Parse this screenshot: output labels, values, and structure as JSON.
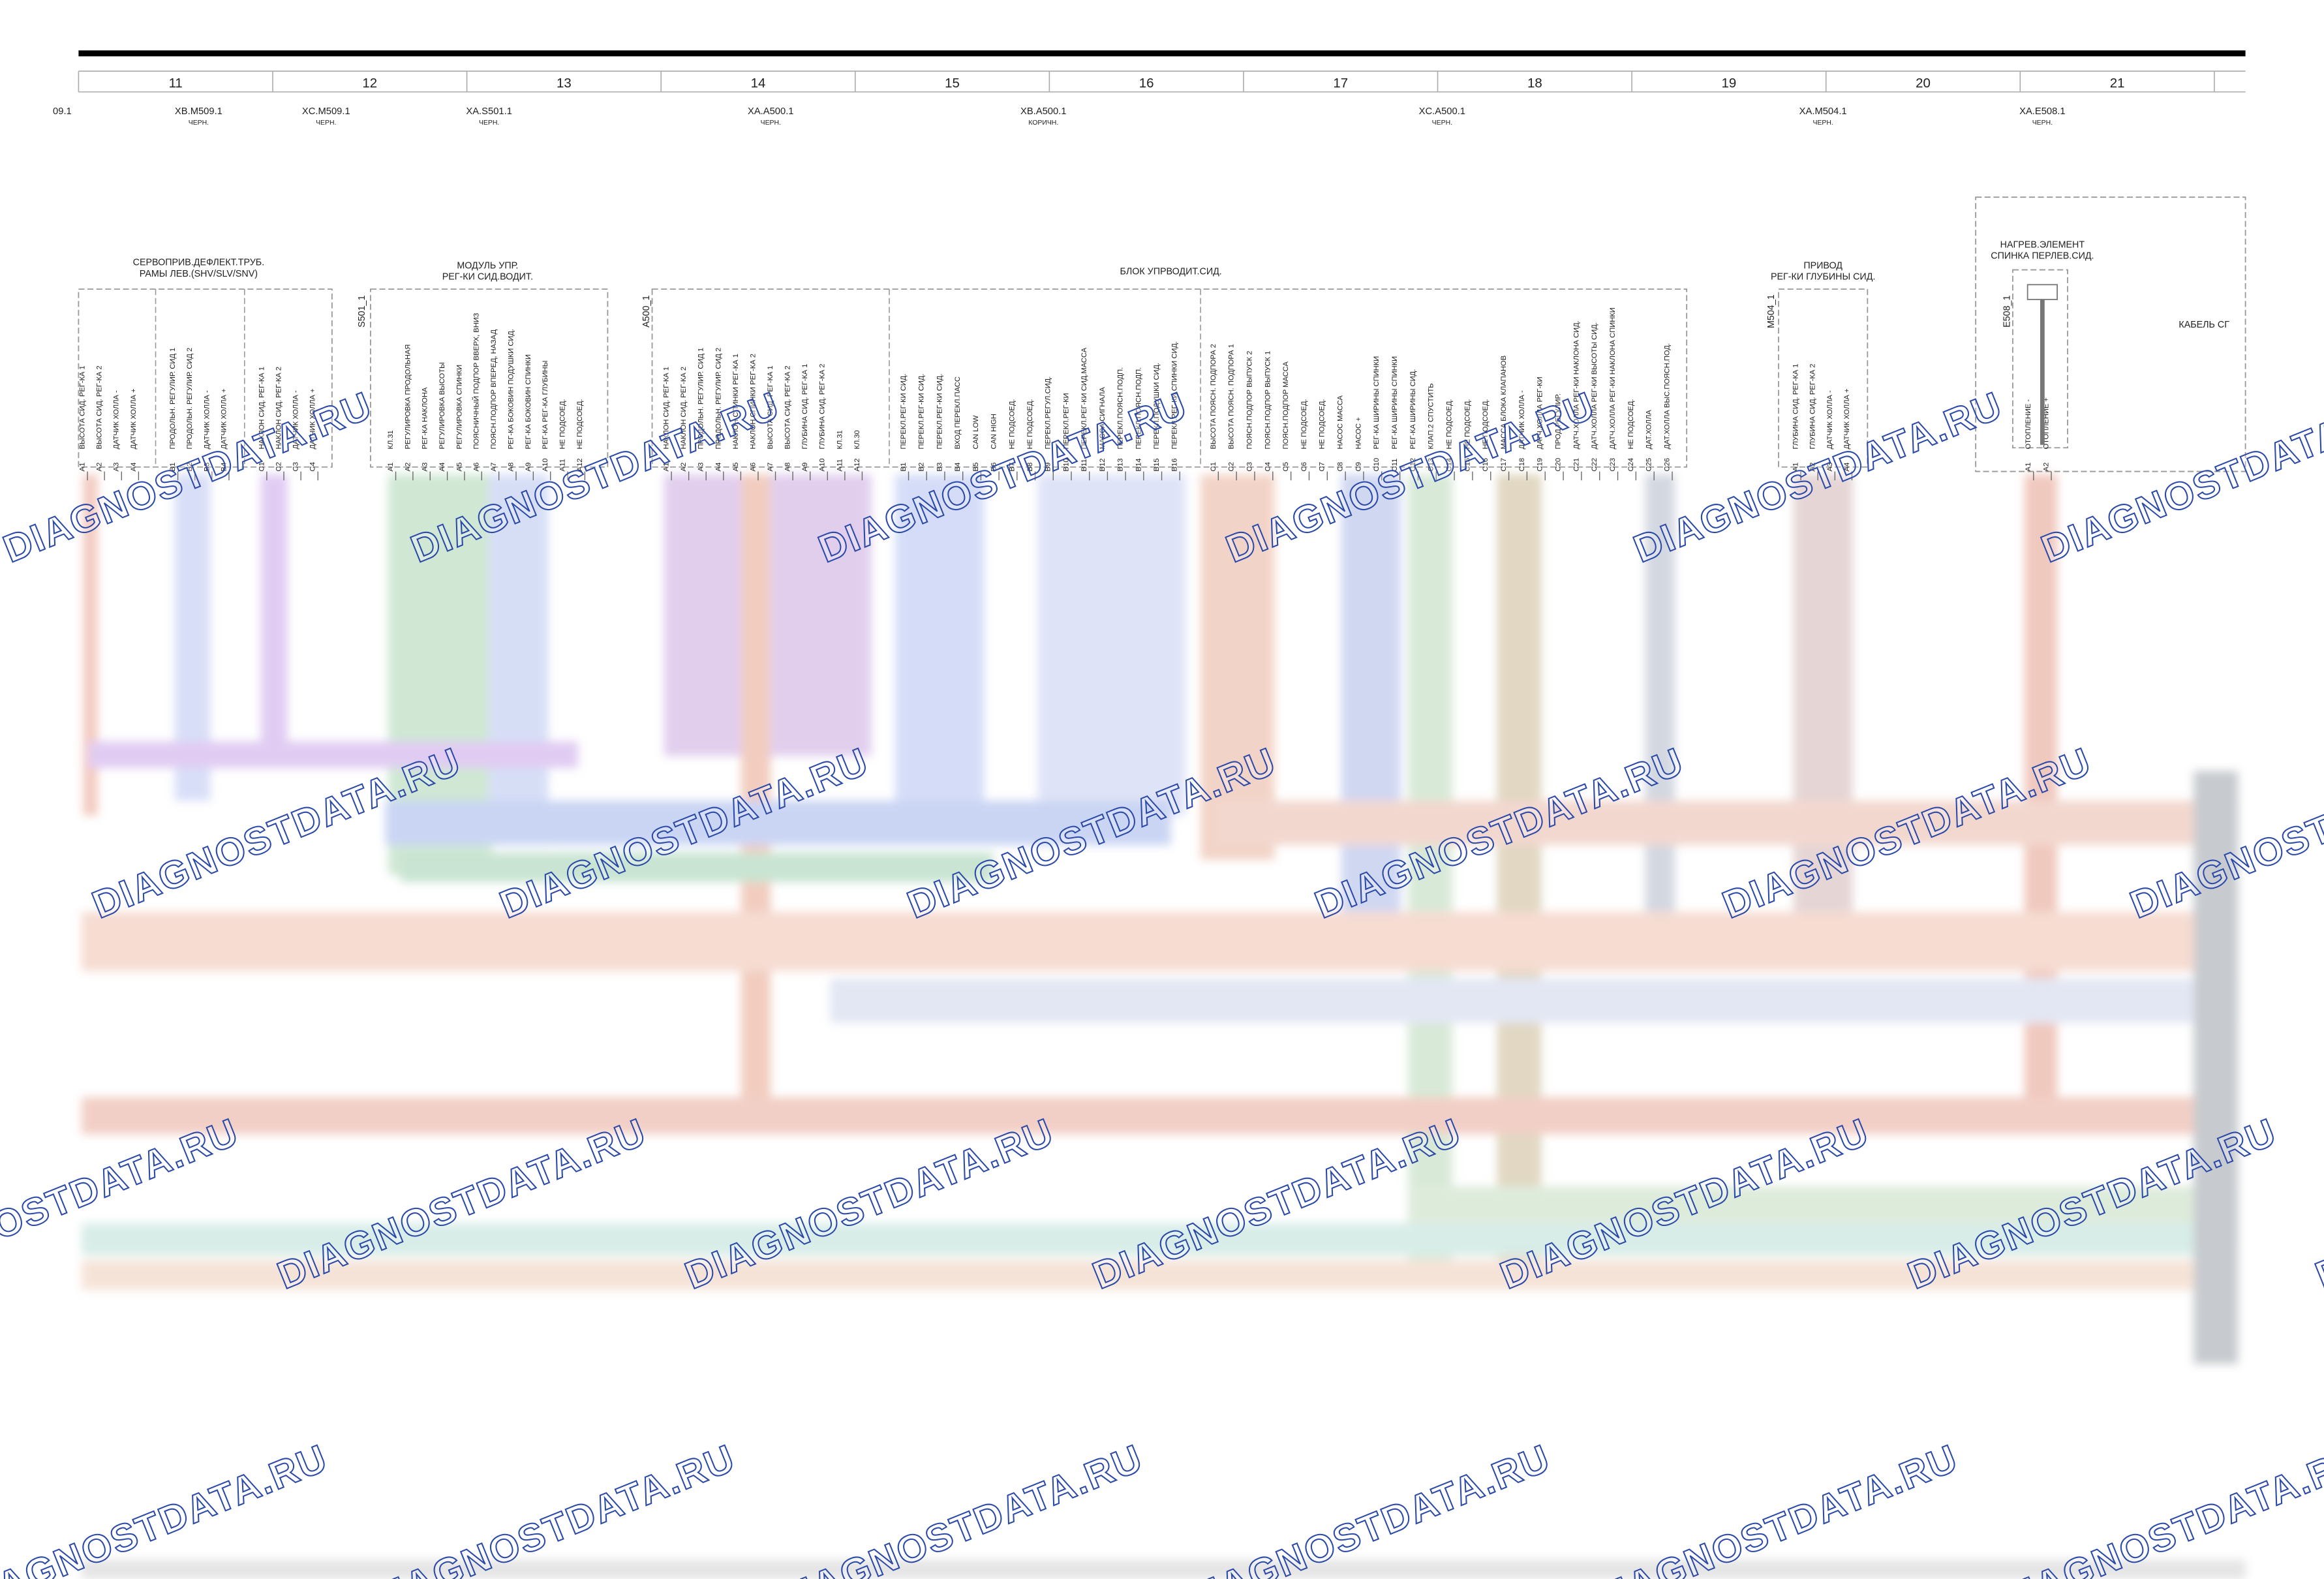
{
  "columns": [
    "11",
    "12",
    "13",
    "14",
    "15",
    "16",
    "17",
    "18",
    "19",
    "20",
    "21"
  ],
  "connectors": [
    {
      "name": "09.1"
    },
    {
      "name": "XB.M509.1",
      "color": "ЧЕРН."
    },
    {
      "name": "XC.M509.1",
      "color": "ЧЕРН."
    },
    {
      "name": "XA.S501.1",
      "color": "ЧЕРН."
    },
    {
      "name": "XA.A500.1",
      "color": "ЧЕРН."
    },
    {
      "name": "XB.A500.1",
      "color": "КОРИЧН."
    },
    {
      "name": "XC.A500.1",
      "color": "ЧЕРН."
    },
    {
      "name": "XA.M504.1",
      "color": "ЧЕРН."
    },
    {
      "name": "XA.E508.1",
      "color": "ЧЕРН."
    }
  ],
  "blocks": [
    {
      "title": [
        "СЕРВОПРИВ.ДЕФЛЕКТ.ТРУБ.",
        "РАМЫ ЛЕВ.(SHV/SLV/SNV)"
      ],
      "pins": [
        {
          "code": "A1",
          "label": "ВЫСОТА СИД. РЕГ-КА 1"
        },
        {
          "code": "A2",
          "label": "ВЫСОТА СИД. РЕГ-КА 2"
        },
        {
          "code": "A3",
          "label": "ДАТЧИК ХОЛЛА -"
        },
        {
          "code": "A4",
          "label": "ДАТЧИК ХОЛЛА +"
        },
        {
          "code": "B1",
          "label": "ПРОДОЛЬН. РЕГУЛИР. СИД 1"
        },
        {
          "code": "B2",
          "label": "ПРОДОЛЬН. РЕГУЛИР. СИД 2"
        },
        {
          "code": "B3",
          "label": "ДАТЧИК ХОЛЛА -"
        },
        {
          "code": "B4",
          "label": "ДАТЧИК ХОЛЛА +"
        },
        {
          "code": "C1",
          "label": "НАКЛОН СИД. РЕГ-КА 1"
        },
        {
          "code": "C2",
          "label": "НАКЛОН СИД. РЕГ-КА 2"
        },
        {
          "code": "C3",
          "label": "ДАТЧИК ХОЛЛА -"
        },
        {
          "code": "C4",
          "label": "ДАТЧИК ХОЛЛА +"
        }
      ]
    },
    {
      "title": [
        "МОДУЛЬ УПР.",
        "РЕГ-КИ СИД.ВОДИТ."
      ],
      "id": "S501_1",
      "pins": [
        {
          "code": "A1",
          "label": "КЛ.31"
        },
        {
          "code": "A2",
          "label": "РЕГУЛИРОВКА ПРОДОЛЬНАЯ"
        },
        {
          "code": "A3",
          "label": "РЕГ-КА НАКЛОНА"
        },
        {
          "code": "A4",
          "label": "РЕГУЛИРОВКА ВЫСОТЫ"
        },
        {
          "code": "A5",
          "label": "РЕГУЛИРОВКА СПИНКИ"
        },
        {
          "code": "A6",
          "label": "ПОЯСНИЧНЫЙ ПОДПОР ВВЕРХ, ВНИЗ"
        },
        {
          "code": "A7",
          "label": "ПОЯСН.ПОДПОР ВПЕРЕД, НАЗАД"
        },
        {
          "code": "A8",
          "label": "РЕГ-КА БОКОВИН ПОДУШКИ СИД."
        },
        {
          "code": "A9",
          "label": "РЕГ-КА БОКОВИН СПИНКИ"
        },
        {
          "code": "A10",
          "label": "РЕГ-КА РЕГ-КА ГЛУБИНЫ"
        },
        {
          "code": "A11",
          "label": "НЕ ПОДСОЕД."
        },
        {
          "code": "A12",
          "label": "НЕ ПОДСОЕД."
        }
      ]
    },
    {
      "title": [
        "БЛОК УПРВОДИТ.СИД."
      ],
      "id": "A500_1",
      "pins": [
        {
          "code": "A1",
          "label": "НАКЛОН СИД. РЕГ-КА 1"
        },
        {
          "code": "A2",
          "label": "НАКЛОН СИД. РЕГ-КА 2"
        },
        {
          "code": "A3",
          "label": "ПРОДОЛЬН. РЕГУЛИР. СИД 1"
        },
        {
          "code": "A4",
          "label": "ПРОДОЛЬН. РЕГУЛИР. СИД 2"
        },
        {
          "code": "A5",
          "label": "НАКЛОН СПИНКИ РЕГ-КА 1"
        },
        {
          "code": "A6",
          "label": "НАКЛОН СПИНКИ РЕГ-КА 2"
        },
        {
          "code": "A7",
          "label": "ВЫСОТА СИД. РЕГ-КА 1"
        },
        {
          "code": "A8",
          "label": "ВЫСОТА СИД. РЕГ-КА 2"
        },
        {
          "code": "A9",
          "label": "ГЛУБИНА СИД. РЕГ-КА 1"
        },
        {
          "code": "A10",
          "label": "ГЛУБИНА СИД. РЕГ-КА 2"
        },
        {
          "code": "A11",
          "label": "КЛ.31"
        },
        {
          "code": "A12",
          "label": "КЛ.30"
        },
        {
          "code": "B1",
          "label": "ПЕРЕКЛ.РЕГ-КИ СИД."
        },
        {
          "code": "B2",
          "label": "ПЕРЕКЛ.РЕГ-КИ СИД."
        },
        {
          "code": "B3",
          "label": "ПЕРЕКЛ.РЕГ-КИ СИД."
        },
        {
          "code": "B4",
          "label": "ВХОД ПЕРЕКЛ.ПАСС"
        },
        {
          "code": "B5",
          "label": "CAN LOW"
        },
        {
          "code": "B6",
          "label": "CAN HIGH"
        },
        {
          "code": "B7",
          "label": "НЕ ПОДСОЕД."
        },
        {
          "code": "B8",
          "label": "НЕ ПОДСОЕД."
        },
        {
          "code": "B9",
          "label": "ПЕРЕКЛ.РЕГУЛ.СИД."
        },
        {
          "code": "B10",
          "label": "ПЕРЕКЛ.РЕГ-КИ"
        },
        {
          "code": "B11",
          "label": "ПЕРЕКЛ.РЕГ-КИ СИД.МАССА"
        },
        {
          "code": "B12",
          "label": "МАССА СИГНАЛА"
        },
        {
          "code": "B13",
          "label": "ПЕРЕКЛ.ПОЯСН.ПОДП."
        },
        {
          "code": "B14",
          "label": "ПЕРЕКЛ.ПОЯСН.ПОДП."
        },
        {
          "code": "B15",
          "label": "ПЕРЕКЛ.ПОДУШКИ СИД."
        },
        {
          "code": "B16",
          "label": "ПЕРЕКЛ.РЕГ-КИ СПИНКИ СИД."
        },
        {
          "code": "C1",
          "label": "ВЫСОТА ПОЯСН. ПОДПОРА 2"
        },
        {
          "code": "C2",
          "label": "ВЫСОТА ПОЯСН. ПОДПОРА 1"
        },
        {
          "code": "C3",
          "label": "ПОЯСН.ПОДПОР ВЫПУСК 2"
        },
        {
          "code": "C4",
          "label": "ПОЯСН.ПОДПОР ВЫПУСК 1"
        },
        {
          "code": "C5",
          "label": "ПОЯСН.ПОДПОР МАССА"
        },
        {
          "code": "C6",
          "label": "НЕ ПОДСОЕД."
        },
        {
          "code": "C7",
          "label": "НЕ ПОДСОЕД."
        },
        {
          "code": "C8",
          "label": "НАСОС МАССА"
        },
        {
          "code": "C9",
          "label": "НАСОС +"
        },
        {
          "code": "C10",
          "label": "РЕГ-КА ШИРИНЫ СПИНКИ"
        },
        {
          "code": "C11",
          "label": "РЕГ-КА ШИРИНЫ СПИНКИ"
        },
        {
          "code": "C12",
          "label": "РЕГ-КА ШИРИНЫ СИД."
        },
        {
          "code": "C13",
          "label": "КЛАП.2 СПУСТИТЬ"
        },
        {
          "code": "C14",
          "label": "НЕ ПОДСОЕД."
        },
        {
          "code": "C15",
          "label": "НЕ ПОДСОЕД."
        },
        {
          "code": "C16",
          "label": "НЕ ПОДСОЕД."
        },
        {
          "code": "C17",
          "label": "МАССА БЛОКА КЛАПАНОВ"
        },
        {
          "code": "C18",
          "label": "ДАТЧИК ХОЛЛА -"
        },
        {
          "code": "C19",
          "label": "ДАТЧ.ХОЛЛА РЕГ-КИ"
        },
        {
          "code": "C20",
          "label": "ПРОД.РЕГУЛИР."
        },
        {
          "code": "C21",
          "label": "ДАТЧ.ХОЛЛА РЕГ-КИ НАКЛОНА СИД."
        },
        {
          "code": "C22",
          "label": "ДАТЧ.ХОЛЛА РЕГ-КИ ВЫСОТЫ СИД."
        },
        {
          "code": "C23",
          "label": "ДАТЧ.ХОЛЛА РЕГ-КИ НАКЛОНА СПИНКИ"
        },
        {
          "code": "C24",
          "label": "НЕ ПОДСОЕД."
        },
        {
          "code": "C25",
          "label": "ДАТ.ХОЛЛА"
        },
        {
          "code": "C26",
          "label": "ДАТ.ХОЛЛА ВЫС.ПОЯСН.ПОД."
        }
      ]
    },
    {
      "title": [
        "ПРИВОД",
        "РЕГ-КИ ГЛУБИНЫ СИД."
      ],
      "id": "M504_1",
      "pins": [
        {
          "code": "A1",
          "label": "ГЛУБИНА СИД. РЕГ-КА 1"
        },
        {
          "code": "A2",
          "label": "ГЛУБИНА СИД. РЕГ-КА 2"
        },
        {
          "code": "A3",
          "label": "ДАТЧИК ХОЛЛА -"
        },
        {
          "code": "A4",
          "label": "ДАТЧИК ХОЛЛА +"
        }
      ]
    },
    {
      "title": [
        "НАГРЕВ.ЭЛЕМЕНТ",
        "СПИНКА ПЕРЛЕВ.СИД."
      ],
      "id": "E508_1",
      "pins": [
        {
          "code": "A1",
          "label": "ОТОПЛЕНИЕ -"
        },
        {
          "code": "A2",
          "label": "ОТОПЛЕНИЕ +"
        }
      ]
    }
  ],
  "cable_label": "КАБЕЛЬ СГ",
  "watermark": "DIAGNOSTDATA.RU"
}
